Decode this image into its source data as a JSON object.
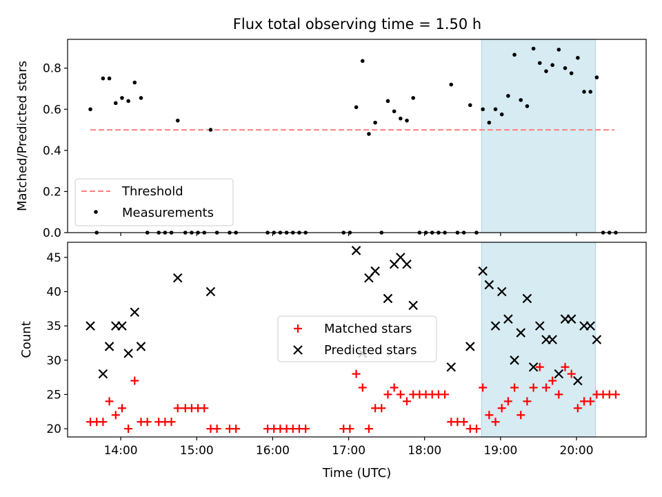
{
  "chart_data": [
    {
      "type": "scatter",
      "title": "Flux total observing time = 1.50 h",
      "xlabel": "",
      "ylabel": "Matched/Predicted stars",
      "xlim": [
        "13:18",
        "20:55"
      ],
      "ylim": [
        0,
        0.94
      ],
      "yticks": [
        0.0,
        0.2,
        0.4,
        0.6,
        0.8
      ],
      "ytick_labels": [
        "0.0",
        "0.2",
        "0.4",
        "0.6",
        "0.8"
      ],
      "grid": false,
      "legend_position": "lower-left",
      "shaded_interval": {
        "start": "18:45",
        "end": "20:15",
        "color": "#add8e6"
      },
      "threshold": {
        "name": "Threshold",
        "y": 0.5,
        "x_start": "13:36",
        "x_end": "20:30",
        "color": "#ff7f7f",
        "style": "dashed"
      },
      "series": [
        {
          "name": "Measurements",
          "marker": "dot",
          "color": "#000000",
          "points": [
            [
              "13:36",
              0.6
            ],
            [
              "13:41",
              0.0
            ],
            [
              "13:46",
              0.75
            ],
            [
              "13:51",
              0.75
            ],
            [
              "13:56",
              0.63
            ],
            [
              "14:01",
              0.655
            ],
            [
              "14:06",
              0.64
            ],
            [
              "14:11",
              0.73
            ],
            [
              "14:16",
              0.655
            ],
            [
              "14:21",
              0.0
            ],
            [
              "14:30",
              0.0
            ],
            [
              "14:35",
              0.0
            ],
            [
              "14:40",
              0.0
            ],
            [
              "14:45",
              0.545
            ],
            [
              "14:51",
              0.0
            ],
            [
              "14:56",
              0.0
            ],
            [
              "15:01",
              0.0
            ],
            [
              "15:06",
              0.0
            ],
            [
              "15:11",
              0.5
            ],
            [
              "15:16",
              0.0
            ],
            [
              "15:26",
              0.0
            ],
            [
              "15:31",
              0.0
            ],
            [
              "15:56",
              0.0
            ],
            [
              "16:01",
              0.0
            ],
            [
              "16:06",
              0.0
            ],
            [
              "16:11",
              0.0
            ],
            [
              "16:16",
              0.0
            ],
            [
              "16:21",
              0.0
            ],
            [
              "16:26",
              0.0
            ],
            [
              "16:56",
              0.0
            ],
            [
              "17:01",
              0.0
            ],
            [
              "17:06",
              0.61
            ],
            [
              "17:11",
              0.835
            ],
            [
              "17:16",
              0.48
            ],
            [
              "17:21",
              0.535
            ],
            [
              "17:26",
              0.0
            ],
            [
              "17:31",
              0.64
            ],
            [
              "17:36",
              0.59
            ],
            [
              "17:41",
              0.555
            ],
            [
              "17:46",
              0.545
            ],
            [
              "17:51",
              0.655
            ],
            [
              "17:56",
              0.0
            ],
            [
              "18:01",
              0.0
            ],
            [
              "18:06",
              0.0
            ],
            [
              "18:11",
              0.0
            ],
            [
              "18:16",
              0.0
            ],
            [
              "18:21",
              0.72
            ],
            [
              "18:26",
              0.0
            ],
            [
              "18:31",
              0.0
            ],
            [
              "18:36",
              0.62
            ],
            [
              "18:41",
              0.0
            ],
            [
              "18:46",
              0.6
            ],
            [
              "18:51",
              0.535
            ],
            [
              "18:56",
              0.6
            ],
            [
              "19:01",
              0.575
            ],
            [
              "19:06",
              0.665
            ],
            [
              "19:11",
              0.865
            ],
            [
              "19:16",
              0.645
            ],
            [
              "19:21",
              0.615
            ],
            [
              "19:26",
              0.895
            ],
            [
              "19:31",
              0.825
            ],
            [
              "19:36",
              0.785
            ],
            [
              "19:41",
              0.815
            ],
            [
              "19:46",
              0.89
            ],
            [
              "19:51",
              0.8
            ],
            [
              "19:56",
              0.775
            ],
            [
              "20:01",
              0.85
            ],
            [
              "20:06",
              0.685
            ],
            [
              "20:11",
              0.685
            ],
            [
              "20:16",
              0.755
            ],
            [
              "20:21",
              0.0
            ],
            [
              "20:26",
              0.0
            ],
            [
              "20:31",
              0.0
            ]
          ]
        }
      ]
    },
    {
      "type": "scatter",
      "title": "",
      "xlabel": "Time (UTC)",
      "ylabel": "Count",
      "xlim": [
        "13:18",
        "20:55"
      ],
      "ylim": [
        18.8,
        47.2
      ],
      "xticks": [
        "14:00",
        "15:00",
        "16:00",
        "17:00",
        "18:00",
        "19:00",
        "20:00"
      ],
      "yticks": [
        20,
        25,
        30,
        35,
        40,
        45
      ],
      "ytick_labels": [
        "20",
        "25",
        "30",
        "35",
        "40",
        "45"
      ],
      "grid": false,
      "legend_position": "center",
      "shaded_interval": {
        "start": "18:45",
        "end": "20:15",
        "color": "#add8e6"
      },
      "series": [
        {
          "name": "Matched stars",
          "marker": "plus",
          "color": "#ff0000",
          "points": [
            [
              "13:36",
              21
            ],
            [
              "13:41",
              21
            ],
            [
              "13:46",
              21
            ],
            [
              "13:51",
              24
            ],
            [
              "13:56",
              22
            ],
            [
              "14:01",
              23
            ],
            [
              "14:06",
              20
            ],
            [
              "14:11",
              27
            ],
            [
              "14:16",
              21
            ],
            [
              "14:21",
              21
            ],
            [
              "14:30",
              21
            ],
            [
              "14:35",
              21
            ],
            [
              "14:40",
              21
            ],
            [
              "14:45",
              23
            ],
            [
              "14:51",
              23
            ],
            [
              "14:56",
              23
            ],
            [
              "15:01",
              23
            ],
            [
              "15:06",
              23
            ],
            [
              "15:11",
              20
            ],
            [
              "15:16",
              20
            ],
            [
              "15:26",
              20
            ],
            [
              "15:31",
              20
            ],
            [
              "15:56",
              20
            ],
            [
              "16:01",
              20
            ],
            [
              "16:06",
              20
            ],
            [
              "16:11",
              20
            ],
            [
              "16:16",
              20
            ],
            [
              "16:21",
              20
            ],
            [
              "16:26",
              20
            ],
            [
              "16:56",
              20
            ],
            [
              "17:01",
              20
            ],
            [
              "17:06",
              28
            ],
            [
              "17:11",
              26
            ],
            [
              "17:16",
              20
            ],
            [
              "17:21",
              23
            ],
            [
              "17:26",
              23
            ],
            [
              "17:31",
              25
            ],
            [
              "17:36",
              26
            ],
            [
              "17:41",
              25
            ],
            [
              "17:46",
              24
            ],
            [
              "17:51",
              25
            ],
            [
              "17:56",
              25
            ],
            [
              "18:01",
              25
            ],
            [
              "18:06",
              25
            ],
            [
              "18:11",
              25
            ],
            [
              "18:16",
              25
            ],
            [
              "18:21",
              21
            ],
            [
              "18:26",
              21
            ],
            [
              "18:31",
              21
            ],
            [
              "18:36",
              20
            ],
            [
              "18:41",
              20
            ],
            [
              "18:46",
              26
            ],
            [
              "18:51",
              22
            ],
            [
              "18:56",
              21
            ],
            [
              "19:01",
              23
            ],
            [
              "19:06",
              24
            ],
            [
              "19:11",
              26
            ],
            [
              "19:16",
              22
            ],
            [
              "19:21",
              24
            ],
            [
              "19:26",
              26
            ],
            [
              "19:31",
              29
            ],
            [
              "19:36",
              26
            ],
            [
              "19:41",
              27
            ],
            [
              "19:46",
              25
            ],
            [
              "19:51",
              29
            ],
            [
              "19:56",
              28
            ],
            [
              "20:01",
              23
            ],
            [
              "20:06",
              24
            ],
            [
              "20:11",
              24
            ],
            [
              "20:16",
              25
            ],
            [
              "20:21",
              25
            ],
            [
              "20:26",
              25
            ],
            [
              "20:31",
              25
            ]
          ]
        },
        {
          "name": "Predicted stars",
          "marker": "x",
          "color": "#000000",
          "points": [
            [
              "13:36",
              35
            ],
            [
              "13:46",
              28
            ],
            [
              "13:51",
              32
            ],
            [
              "13:56",
              35
            ],
            [
              "14:01",
              35
            ],
            [
              "14:06",
              31
            ],
            [
              "14:11",
              37
            ],
            [
              "14:16",
              32
            ],
            [
              "14:45",
              42
            ],
            [
              "15:11",
              40
            ],
            [
              "17:06",
              46
            ],
            [
              "17:11",
              31
            ],
            [
              "17:16",
              42
            ],
            [
              "17:21",
              43
            ],
            [
              "17:31",
              39
            ],
            [
              "17:36",
              44
            ],
            [
              "17:41",
              45
            ],
            [
              "17:46",
              44
            ],
            [
              "17:51",
              38
            ],
            [
              "18:21",
              29
            ],
            [
              "18:36",
              32
            ],
            [
              "18:46",
              43
            ],
            [
              "18:51",
              41
            ],
            [
              "18:56",
              35
            ],
            [
              "19:01",
              40
            ],
            [
              "19:06",
              36
            ],
            [
              "19:11",
              30
            ],
            [
              "19:16",
              34
            ],
            [
              "19:21",
              39
            ],
            [
              "19:26",
              29
            ],
            [
              "19:31",
              35
            ],
            [
              "19:36",
              33
            ],
            [
              "19:41",
              33
            ],
            [
              "19:46",
              28
            ],
            [
              "19:51",
              36
            ],
            [
              "19:56",
              36
            ],
            [
              "20:01",
              27
            ],
            [
              "20:06",
              35
            ],
            [
              "20:11",
              35
            ],
            [
              "20:16",
              33
            ]
          ]
        }
      ]
    }
  ]
}
